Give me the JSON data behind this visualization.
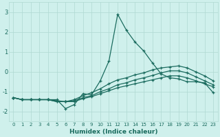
{
  "xlabel": "Humidex (Indice chaleur)",
  "x": [
    0,
    1,
    2,
    3,
    4,
    5,
    6,
    7,
    8,
    9,
    10,
    11,
    12,
    13,
    14,
    15,
    16,
    17,
    18,
    19,
    20,
    21,
    22,
    23
  ],
  "line_main": [
    -1.3,
    -1.4,
    -1.4,
    -1.4,
    -1.4,
    -1.4,
    -1.85,
    -1.65,
    -1.1,
    -1.15,
    -0.45,
    0.55,
    2.9,
    2.1,
    1.5,
    1.05,
    0.45,
    -0.1,
    -0.3,
    -0.35,
    -0.5,
    -0.5,
    -0.55,
    -1.05
  ],
  "line_top": [
    -1.3,
    -1.4,
    -1.4,
    -1.4,
    -1.4,
    -1.45,
    -1.5,
    -1.4,
    -1.2,
    -1.05,
    -0.85,
    -0.6,
    -0.4,
    -0.3,
    -0.15,
    -0.05,
    0.1,
    0.2,
    0.25,
    0.3,
    0.2,
    0.0,
    -0.2,
    -0.45
  ],
  "line_mid": [
    -1.3,
    -1.4,
    -1.4,
    -1.4,
    -1.4,
    -1.5,
    -1.5,
    -1.45,
    -1.3,
    -1.2,
    -1.0,
    -0.85,
    -0.65,
    -0.55,
    -0.4,
    -0.3,
    -0.18,
    -0.05,
    0.05,
    0.05,
    -0.05,
    -0.25,
    -0.45,
    -0.65
  ],
  "line_bot": [
    -1.3,
    -1.4,
    -1.4,
    -1.4,
    -1.4,
    -1.5,
    -1.5,
    -1.5,
    -1.35,
    -1.25,
    -1.1,
    -0.95,
    -0.8,
    -0.7,
    -0.6,
    -0.5,
    -0.4,
    -0.3,
    -0.2,
    -0.2,
    -0.3,
    -0.45,
    -0.6,
    -0.75
  ],
  "color": "#1a6b5e",
  "bg_color": "#cff0ec",
  "grid_color": "#afd8d2",
  "ylim": [
    -2.5,
    3.5
  ],
  "xlim": [
    -0.5,
    23.5
  ],
  "yticks": [
    -2,
    -1,
    0,
    1,
    2,
    3
  ],
  "xticks": [
    0,
    1,
    2,
    3,
    4,
    5,
    6,
    7,
    8,
    9,
    10,
    11,
    12,
    13,
    14,
    15,
    16,
    17,
    18,
    19,
    20,
    21,
    22,
    23
  ]
}
